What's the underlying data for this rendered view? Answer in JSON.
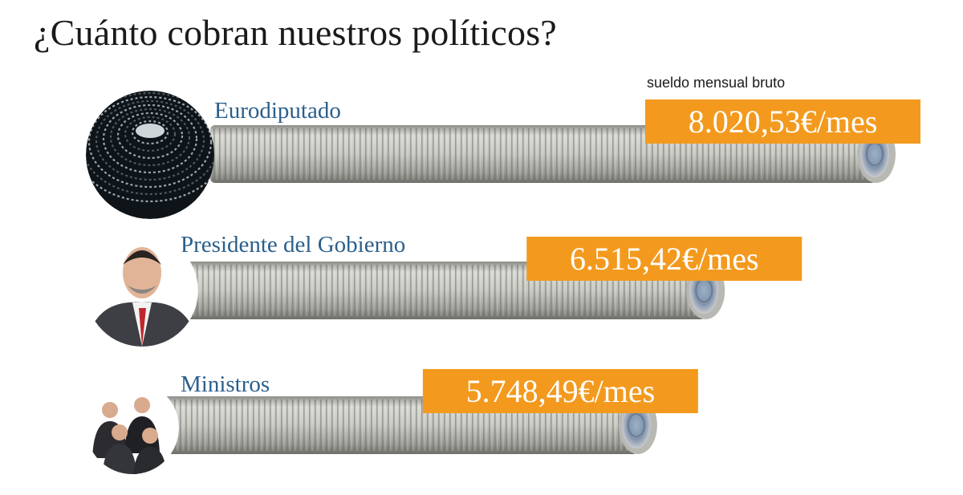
{
  "header": {
    "title": "¿Cuánto cobran nuestros políticos?",
    "subtitle": "sueldo mensual bruto"
  },
  "colors": {
    "label": "#2b5f8c",
    "value_box": "#f39a1e",
    "coin_edge": "#b9b9b3"
  },
  "chart_data": {
    "type": "bar",
    "title": "¿Cuánto cobran nuestros políticos?",
    "subtitle": "sueldo mensual bruto",
    "unit": "€/mes",
    "categories": [
      "Eurodiputado",
      "Presidente del Gobierno",
      "Ministros"
    ],
    "values": [
      8020.53,
      6515.42,
      5748.49
    ],
    "value_labels": [
      "8.020,53€/mes",
      "6.515,42€/mes",
      "5.748,49€/mes"
    ],
    "icons": [
      "parliament-photo",
      "president-photo",
      "ministers-photo"
    ]
  }
}
